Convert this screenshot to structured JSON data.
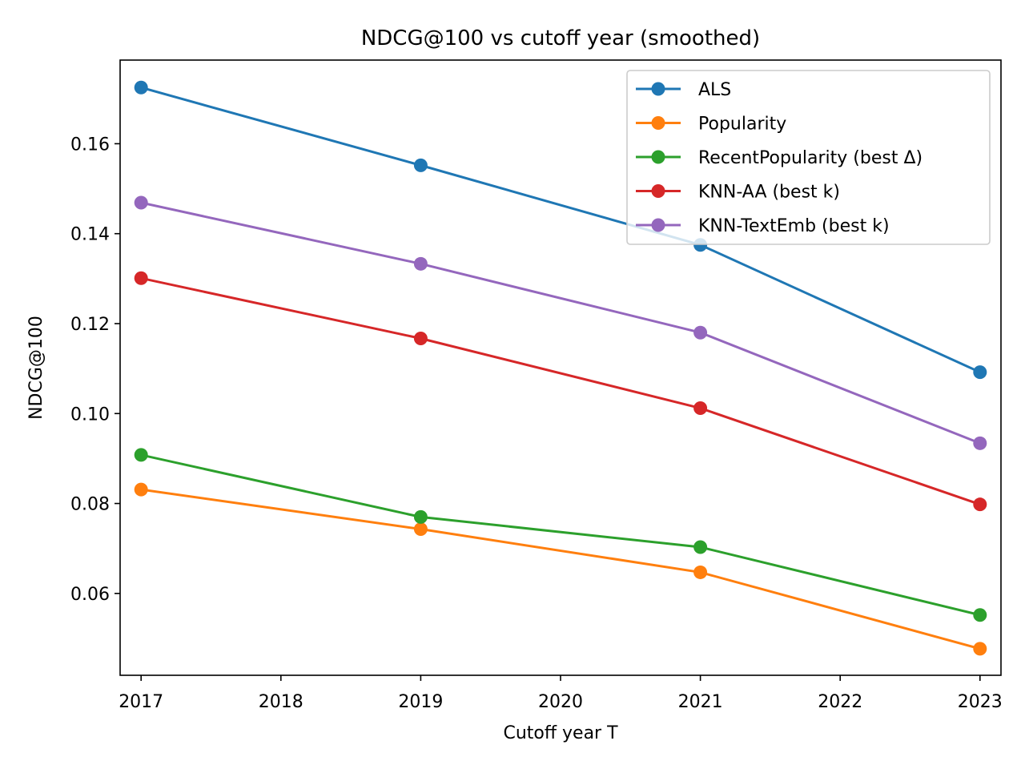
{
  "chart_data": {
    "type": "line",
    "title": "NDCG@100 vs cutoff year (smoothed)",
    "xlabel": "Cutoff year T",
    "ylabel": "NDCG@100",
    "x": [
      2017,
      2019,
      2021,
      2023
    ],
    "xlim": [
      2016.85,
      2023.15
    ],
    "ylim": [
      0.0418,
      0.1786
    ],
    "xticks": [
      2017,
      2018,
      2019,
      2020,
      2021,
      2022,
      2023
    ],
    "yticks": [
      0.06,
      0.08,
      0.1,
      0.12,
      0.14,
      0.16
    ],
    "ytick_labels": [
      "0.06",
      "0.08",
      "0.10",
      "0.12",
      "0.14",
      "0.16"
    ],
    "grid": false,
    "legend_position": "upper-right",
    "series": [
      {
        "name": "ALS",
        "color": "#1f77b4",
        "values": [
          0.1725,
          0.1552,
          0.1375,
          0.1092
        ]
      },
      {
        "name": "Popularity",
        "color": "#ff7f0e",
        "values": [
          0.0831,
          0.0743,
          0.0647,
          0.0477
        ]
      },
      {
        "name": "RecentPopularity (best Δ)",
        "color": "#2ca02c",
        "values": [
          0.0908,
          0.077,
          0.0703,
          0.0552
        ]
      },
      {
        "name": "KNN-AA (best k)",
        "color": "#d62728",
        "values": [
          0.1301,
          0.1167,
          0.1012,
          0.0798
        ]
      },
      {
        "name": "KNN-TextEmb (best k)",
        "color": "#9467bd",
        "values": [
          0.1469,
          0.1333,
          0.118,
          0.0934
        ]
      }
    ]
  }
}
